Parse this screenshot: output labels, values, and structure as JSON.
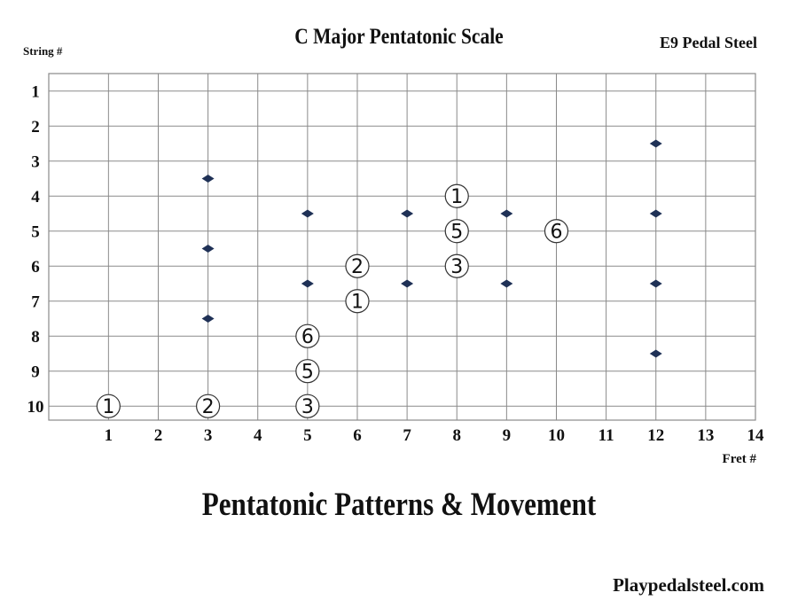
{
  "header": {
    "title": "C Major Pentatonic Scale",
    "instrument": "E9 Pedal Steel",
    "string_axis_label": "String #",
    "fret_axis_label": "Fret #"
  },
  "chart_data": {
    "type": "scatter",
    "title": "C Major Pentatonic Scale",
    "xlabel": "Fret #",
    "ylabel": "String #",
    "x_ticks": [
      1,
      2,
      3,
      4,
      5,
      6,
      7,
      8,
      9,
      10,
      11,
      12,
      13,
      14
    ],
    "y_ticks": [
      1,
      2,
      3,
      4,
      5,
      6,
      7,
      8,
      9,
      10
    ],
    "xlim": [
      -0.2,
      14
    ],
    "ylim": [
      0.5,
      10.4
    ],
    "y_inverted": true,
    "grid": true,
    "fret_markers": [
      {
        "fret": 3,
        "string": 3.5
      },
      {
        "fret": 3,
        "string": 5.5
      },
      {
        "fret": 3,
        "string": 7.5
      },
      {
        "fret": 5,
        "string": 4.5
      },
      {
        "fret": 5,
        "string": 6.5
      },
      {
        "fret": 7,
        "string": 4.5
      },
      {
        "fret": 7,
        "string": 6.5
      },
      {
        "fret": 9,
        "string": 4.5
      },
      {
        "fret": 9,
        "string": 6.5
      },
      {
        "fret": 12,
        "string": 2.5
      },
      {
        "fret": 12,
        "string": 4.5
      },
      {
        "fret": 12,
        "string": 6.5
      },
      {
        "fret": 12,
        "string": 8.5
      }
    ],
    "notes": [
      {
        "fret": 1,
        "string": 10,
        "label": "1"
      },
      {
        "fret": 3,
        "string": 10,
        "label": "2"
      },
      {
        "fret": 5,
        "string": 10,
        "label": "3"
      },
      {
        "fret": 5,
        "string": 9,
        "label": "5"
      },
      {
        "fret": 5,
        "string": 8,
        "label": "6"
      },
      {
        "fret": 6,
        "string": 7,
        "label": "1"
      },
      {
        "fret": 6,
        "string": 6,
        "label": "2"
      },
      {
        "fret": 8,
        "string": 6,
        "label": "3"
      },
      {
        "fret": 8,
        "string": 5,
        "label": "5"
      },
      {
        "fret": 8,
        "string": 4,
        "label": "1"
      },
      {
        "fret": 10,
        "string": 5,
        "label": "6"
      }
    ],
    "colors": {
      "grid": "#8a8a8a",
      "marker": "#1f3156",
      "note_circle": "#333333"
    }
  },
  "footer": {
    "subtitle": "Pentatonic Patterns & Movement",
    "site": "Playpedalsteel.com"
  }
}
